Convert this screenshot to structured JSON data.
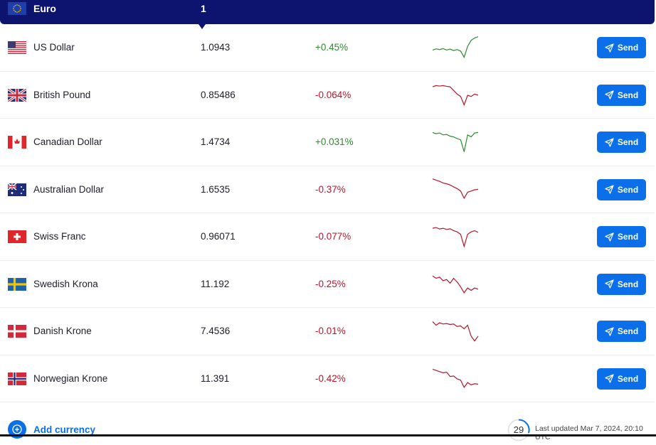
{
  "base": {
    "name": "Euro",
    "amount": "1",
    "flag": "eu"
  },
  "rows": [
    {
      "name": "US Dollar",
      "rate": "1.0943",
      "change": "+0.45%",
      "dir": "pos",
      "flag": "us",
      "send": "Send",
      "spark": [
        0.4,
        0.45,
        0.42,
        0.46,
        0.4,
        0.44,
        0.38,
        0.42,
        0.36,
        0.1,
        0.55,
        0.8,
        0.9,
        0.95
      ]
    },
    {
      "name": "British Pound",
      "rate": "0.85486",
      "change": "-0.064%",
      "dir": "neg",
      "flag": "gb",
      "send": "Send",
      "spark": [
        0.85,
        0.9,
        0.88,
        0.9,
        0.87,
        0.85,
        0.7,
        0.55,
        0.45,
        0.1,
        0.5,
        0.45,
        0.55,
        0.5
      ]
    },
    {
      "name": "Canadian Dollar",
      "rate": "1.4734",
      "change": "+0.031%",
      "dir": "pos",
      "flag": "ca",
      "send": "Send",
      "spark": [
        0.9,
        0.85,
        0.88,
        0.8,
        0.82,
        0.75,
        0.72,
        0.65,
        0.6,
        0.1,
        0.8,
        0.72,
        0.88,
        0.9
      ]
    },
    {
      "name": "Australian Dollar",
      "rate": "1.6535",
      "change": "-0.37%",
      "dir": "neg",
      "flag": "au",
      "send": "Send",
      "spark": [
        0.95,
        0.9,
        0.85,
        0.78,
        0.75,
        0.7,
        0.62,
        0.55,
        0.45,
        0.15,
        0.4,
        0.45,
        0.5,
        0.52
      ]
    },
    {
      "name": "Swiss Franc",
      "rate": "0.96071",
      "change": "-0.077%",
      "dir": "neg",
      "flag": "ch",
      "send": "Send",
      "spark": [
        0.85,
        0.88,
        0.82,
        0.85,
        0.8,
        0.83,
        0.75,
        0.7,
        0.6,
        0.1,
        0.6,
        0.7,
        0.75,
        0.68
      ]
    },
    {
      "name": "Swedish Krona",
      "rate": "11.192",
      "change": "-0.25%",
      "dir": "neg",
      "flag": "se",
      "send": "Send",
      "spark": [
        0.85,
        0.75,
        0.8,
        0.65,
        0.7,
        0.55,
        0.75,
        0.6,
        0.4,
        0.15,
        0.35,
        0.25,
        0.35,
        0.3
      ]
    },
    {
      "name": "Danish Krone",
      "rate": "7.4536",
      "change": "-0.01%",
      "dir": "neg",
      "flag": "dk",
      "send": "Send",
      "spark": [
        0.9,
        0.75,
        0.85,
        0.8,
        0.82,
        0.78,
        0.8,
        0.7,
        0.72,
        0.6,
        0.75,
        0.3,
        0.1,
        0.3
      ]
    },
    {
      "name": "Norwegian Krone",
      "rate": "11.391",
      "change": "-0.42%",
      "dir": "neg",
      "flag": "no",
      "send": "Send",
      "spark": [
        0.9,
        0.85,
        0.8,
        0.75,
        0.78,
        0.6,
        0.62,
        0.5,
        0.45,
        0.15,
        0.35,
        0.25,
        0.3,
        0.28
      ]
    }
  ],
  "footer": {
    "add_label": "Add currency",
    "countdown": "29",
    "updated": "Last updated Mar 7, 2024, 20:10 UTC"
  },
  "colors": {
    "header": "#0c1470",
    "accent": "#0a6fe8",
    "positive": "#2e8b2e",
    "negative": "#b3182c"
  }
}
